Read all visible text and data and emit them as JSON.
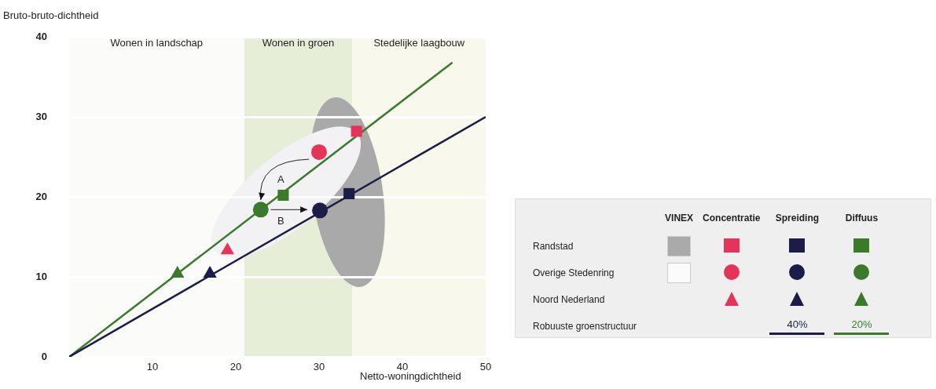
{
  "chart_data": {
    "type": "scatter",
    "xlabel": "Netto-woningdichtheid",
    "ylabel": "Bruto-bruto-dichtheid",
    "xlim": [
      0,
      50
    ],
    "ylim": [
      0,
      40
    ],
    "xticks": [
      10,
      20,
      30,
      40,
      50
    ],
    "yticks": [
      0,
      10,
      20,
      30,
      40
    ],
    "grid": "y",
    "legend": "right",
    "bands": [
      {
        "axis": "x",
        "from": 0,
        "to": 21,
        "label": "Wonen in landschap",
        "color": "#fbfbf9"
      },
      {
        "axis": "x",
        "from": 21,
        "to": 34,
        "label": "Wonen in groen",
        "color": "#e6eed8"
      },
      {
        "axis": "x",
        "from": 34,
        "to": 50,
        "label": "Stedelijke laagbouw",
        "color": "#f8f9ec"
      }
    ],
    "annotations": [
      "VINEX",
      "Concentratie",
      "Spreiding",
      "Diffuus",
      "Randstad",
      "Overige Stedenring",
      "Noord Nederland",
      "Robuuste groenstructuur",
      "A",
      "B"
    ],
    "series": [
      {
        "name": "40%",
        "type": "line",
        "color": "#1b1d48",
        "x": [
          0,
          50
        ],
        "values": [
          0,
          30
        ],
        "marker": "none"
      },
      {
        "name": "20%",
        "type": "line",
        "color": "#3b7a2c",
        "x": [
          0,
          46
        ],
        "values": [
          0,
          36.8
        ],
        "marker": "none"
      },
      {
        "type": "scatter",
        "marker": "square",
        "color": "#e5345a",
        "x": [
          34.5
        ],
        "values": [
          28.2
        ]
      },
      {
        "type": "scatter",
        "marker": "square",
        "color": "#1b1d48",
        "x": [
          33.6
        ],
        "values": [
          20.4
        ]
      },
      {
        "type": "scatter",
        "marker": "square",
        "color": "#3b7a2c",
        "x": [
          25.7
        ],
        "values": [
          20.2
        ]
      },
      {
        "type": "scatter",
        "marker": "circle",
        "color": "#e5345a",
        "x": [
          30
        ],
        "values": [
          25.6
        ]
      },
      {
        "type": "scatter",
        "marker": "circle",
        "color": "#1b1d48",
        "x": [
          30.1
        ],
        "values": [
          18.3
        ]
      },
      {
        "type": "scatter",
        "marker": "circle",
        "color": "#3b7a2c",
        "x": [
          23
        ],
        "values": [
          18.4
        ]
      },
      {
        "type": "scatter",
        "marker": "triangle",
        "color": "#e5345a",
        "x": [
          19
        ],
        "values": [
          13.3
        ]
      },
      {
        "type": "scatter",
        "marker": "triangle",
        "color": "#1b1d48",
        "x": [
          16.9
        ],
        "values": [
          10.4
        ]
      },
      {
        "type": "scatter",
        "marker": "triangle",
        "color": "#3b7a2c",
        "x": [
          13
        ],
        "values": [
          10.4
        ]
      }
    ]
  }
}
